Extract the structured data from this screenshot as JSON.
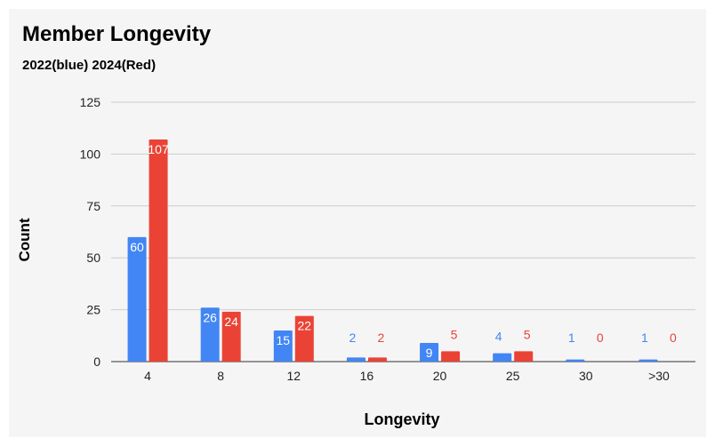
{
  "chart_data": {
    "type": "bar",
    "title": "Member Longevity",
    "subtitle": "2022(blue) 2024(Red)",
    "xlabel": "Longevity",
    "ylabel": "Count",
    "categories": [
      "4",
      "8",
      "12",
      "16",
      "20",
      "25",
      "30",
      ">30"
    ],
    "series": [
      {
        "values": [
          60,
          26,
          15,
          2,
          9,
          4,
          1,
          1
        ],
        "color": "#4285f4"
      },
      {
        "values": [
          107,
          24,
          22,
          2,
          5,
          5,
          0,
          0
        ],
        "color": "#ea4335"
      }
    ],
    "ylim": [
      0,
      125
    ],
    "yticks": [
      0,
      25,
      50,
      75,
      100,
      125
    ],
    "grid": true,
    "legend": "none"
  }
}
